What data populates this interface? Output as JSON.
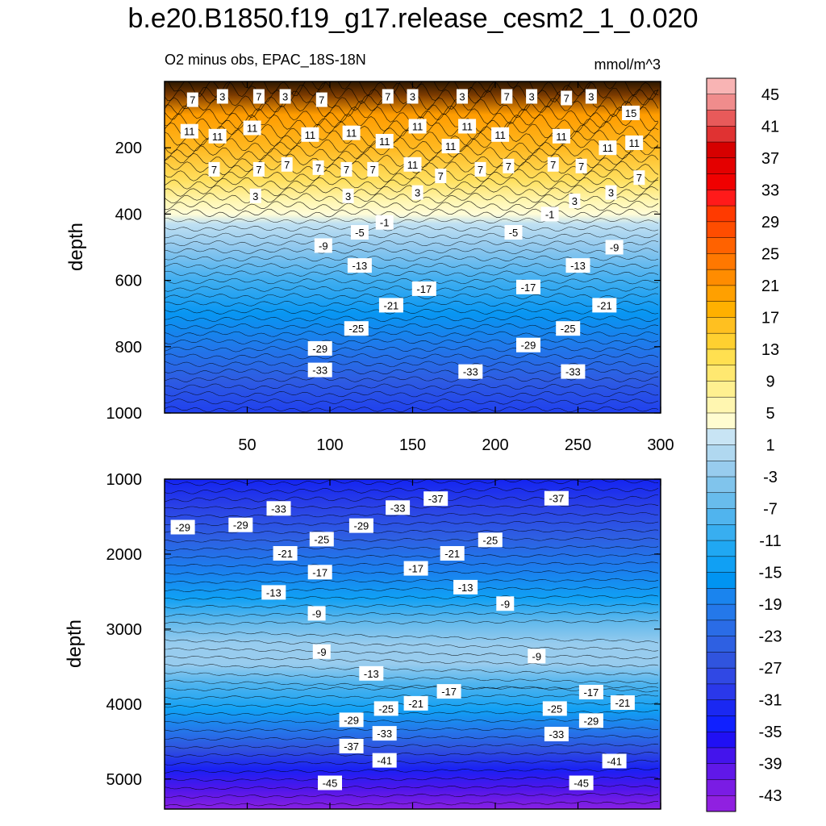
{
  "title": "b.e20.B1850.f19_g17.release_cesm2_1_0.020",
  "subtitle": "O2 minus obs, EPAC_18S-18N",
  "units": "mmol/m^3",
  "chart_data": [
    {
      "type": "heatmap",
      "panel": "upper",
      "ylabel": "depth",
      "xlim": [
        0,
        300
      ],
      "ylim": [
        1000,
        0
      ],
      "x_ticks": [
        "50",
        "100",
        "150",
        "200",
        "250",
        "300"
      ],
      "y_ticks": [
        "200",
        "400",
        "600",
        "800",
        "1000"
      ],
      "contour_labels": [
        {
          "text": "7",
          "x": 17,
          "y": 55
        },
        {
          "text": "3",
          "x": 35,
          "y": 45
        },
        {
          "text": "7",
          "x": 57,
          "y": 45
        },
        {
          "text": "3",
          "x": 73,
          "y": 45
        },
        {
          "text": "7",
          "x": 95,
          "y": 55
        },
        {
          "text": "7",
          "x": 135,
          "y": 45
        },
        {
          "text": "3",
          "x": 150,
          "y": 45
        },
        {
          "text": "3",
          "x": 180,
          "y": 45
        },
        {
          "text": "7",
          "x": 207,
          "y": 45
        },
        {
          "text": "3",
          "x": 222,
          "y": 45
        },
        {
          "text": "7",
          "x": 243,
          "y": 50
        },
        {
          "text": "3",
          "x": 258,
          "y": 45
        },
        {
          "text": "15",
          "x": 282,
          "y": 95
        },
        {
          "text": "11",
          "x": 15,
          "y": 150
        },
        {
          "text": "11",
          "x": 32,
          "y": 165
        },
        {
          "text": "11",
          "x": 53,
          "y": 140
        },
        {
          "text": "11",
          "x": 88,
          "y": 160
        },
        {
          "text": "11",
          "x": 113,
          "y": 155
        },
        {
          "text": "11",
          "x": 133,
          "y": 180
        },
        {
          "text": "11",
          "x": 153,
          "y": 135
        },
        {
          "text": "11",
          "x": 173,
          "y": 195
        },
        {
          "text": "11",
          "x": 183,
          "y": 135
        },
        {
          "text": "11",
          "x": 203,
          "y": 160
        },
        {
          "text": "11",
          "x": 240,
          "y": 165
        },
        {
          "text": "11",
          "x": 268,
          "y": 200
        },
        {
          "text": "11",
          "x": 284,
          "y": 185
        },
        {
          "text": "7",
          "x": 30,
          "y": 265
        },
        {
          "text": "7",
          "x": 57,
          "y": 265
        },
        {
          "text": "7",
          "x": 74,
          "y": 250
        },
        {
          "text": "7",
          "x": 93,
          "y": 260
        },
        {
          "text": "7",
          "x": 110,
          "y": 265
        },
        {
          "text": "7",
          "x": 126,
          "y": 265
        },
        {
          "text": "11",
          "x": 150,
          "y": 250
        },
        {
          "text": "7",
          "x": 167,
          "y": 285
        },
        {
          "text": "7",
          "x": 191,
          "y": 265
        },
        {
          "text": "7",
          "x": 208,
          "y": 255
        },
        {
          "text": "7",
          "x": 235,
          "y": 250
        },
        {
          "text": "7",
          "x": 252,
          "y": 255
        },
        {
          "text": "7",
          "x": 287,
          "y": 290
        },
        {
          "text": "3",
          "x": 55,
          "y": 345
        },
        {
          "text": "3",
          "x": 111,
          "y": 345
        },
        {
          "text": "3",
          "x": 153,
          "y": 335
        },
        {
          "text": "3",
          "x": 248,
          "y": 360
        },
        {
          "text": "3",
          "x": 270,
          "y": 335
        },
        {
          "text": "-1",
          "x": 133,
          "y": 425
        },
        {
          "text": "-1",
          "x": 233,
          "y": 400
        },
        {
          "text": "-5",
          "x": 118,
          "y": 455
        },
        {
          "text": "-5",
          "x": 211,
          "y": 455
        },
        {
          "text": "-9",
          "x": 96,
          "y": 495
        },
        {
          "text": "-9",
          "x": 272,
          "y": 500
        },
        {
          "text": "-13",
          "x": 118,
          "y": 555
        },
        {
          "text": "-13",
          "x": 250,
          "y": 555
        },
        {
          "text": "-17",
          "x": 157,
          "y": 625
        },
        {
          "text": "-17",
          "x": 220,
          "y": 620
        },
        {
          "text": "-21",
          "x": 137,
          "y": 675
        },
        {
          "text": "-21",
          "x": 266,
          "y": 675
        },
        {
          "text": "-25",
          "x": 116,
          "y": 745
        },
        {
          "text": "-25",
          "x": 244,
          "y": 745
        },
        {
          "text": "-29",
          "x": 94,
          "y": 805
        },
        {
          "text": "-29",
          "x": 220,
          "y": 795
        },
        {
          "text": "-33",
          "x": 94,
          "y": 870
        },
        {
          "text": "-33",
          "x": 185,
          "y": 875
        },
        {
          "text": "-33",
          "x": 247,
          "y": 875
        }
      ]
    },
    {
      "type": "heatmap",
      "panel": "lower",
      "ylabel": "depth",
      "xlim": [
        0,
        300
      ],
      "ylim": [
        5400,
        1000
      ],
      "x_ticks": [],
      "y_ticks": [
        "1000",
        "2000",
        "3000",
        "4000",
        "5000"
      ],
      "contour_labels": [
        {
          "text": "-33",
          "x": 69,
          "y": 1390
        },
        {
          "text": "-33",
          "x": 141,
          "y": 1380
        },
        {
          "text": "-37",
          "x": 164,
          "y": 1260
        },
        {
          "text": "-37",
          "x": 237,
          "y": 1255
        },
        {
          "text": "-29",
          "x": 11,
          "y": 1640
        },
        {
          "text": "-29",
          "x": 46,
          "y": 1610
        },
        {
          "text": "-29",
          "x": 119,
          "y": 1620
        },
        {
          "text": "-25",
          "x": 95,
          "y": 1800
        },
        {
          "text": "-25",
          "x": 197,
          "y": 1810
        },
        {
          "text": "-21",
          "x": 73,
          "y": 1990
        },
        {
          "text": "-21",
          "x": 174,
          "y": 1990
        },
        {
          "text": "-17",
          "x": 94,
          "y": 2240
        },
        {
          "text": "-17",
          "x": 152,
          "y": 2190
        },
        {
          "text": "-13",
          "x": 66,
          "y": 2510
        },
        {
          "text": "-13",
          "x": 182,
          "y": 2440
        },
        {
          "text": "-9",
          "x": 92,
          "y": 2790
        },
        {
          "text": "-9",
          "x": 206,
          "y": 2660
        },
        {
          "text": "-9",
          "x": 95,
          "y": 3300
        },
        {
          "text": "-9",
          "x": 225,
          "y": 3360
        },
        {
          "text": "-13",
          "x": 125,
          "y": 3590
        },
        {
          "text": "-17",
          "x": 172,
          "y": 3830
        },
        {
          "text": "-17",
          "x": 258,
          "y": 3840
        },
        {
          "text": "-21",
          "x": 152,
          "y": 3990
        },
        {
          "text": "-21",
          "x": 277,
          "y": 3980
        },
        {
          "text": "-25",
          "x": 134,
          "y": 4060
        },
        {
          "text": "-25",
          "x": 236,
          "y": 4060
        },
        {
          "text": "-29",
          "x": 113,
          "y": 4210
        },
        {
          "text": "-29",
          "x": 258,
          "y": 4220
        },
        {
          "text": "-33",
          "x": 133,
          "y": 4390
        },
        {
          "text": "-33",
          "x": 237,
          "y": 4400
        },
        {
          "text": "-37",
          "x": 113,
          "y": 4560
        },
        {
          "text": "-41",
          "x": 133,
          "y": 4750
        },
        {
          "text": "-41",
          "x": 272,
          "y": 4760
        },
        {
          "text": "-45",
          "x": 100,
          "y": 5050
        },
        {
          "text": "-45",
          "x": 252,
          "y": 5050
        }
      ]
    }
  ],
  "colorbar": {
    "labels": [
      "45",
      "41",
      "37",
      "33",
      "29",
      "25",
      "21",
      "17",
      "13",
      "9",
      "5",
      "1",
      "-3",
      "-7",
      "-11",
      "-15",
      "-19",
      "-23",
      "-27",
      "-31",
      "-35",
      "-39",
      "-43"
    ],
    "colors": [
      "#f8b4b4",
      "#f08c8c",
      "#e85a5a",
      "#e03232",
      "#d60000",
      "#e40000",
      "#f00000",
      "#ff1a1a",
      "#ff3a00",
      "#ff4d00",
      "#ff6200",
      "#ff7800",
      "#ff8c00",
      "#ffa000",
      "#ffb000",
      "#ffc020",
      "#ffd030",
      "#ffe050",
      "#ffe870",
      "#fff090",
      "#fff6b0",
      "#fffcd0",
      "#c8e4f4",
      "#b0d8f0",
      "#98ccee",
      "#80c4ec",
      "#68bcec",
      "#50b4ee",
      "#38aef0",
      "#20a8f2",
      "#10a0f4",
      "#0094f2",
      "#1a84ee",
      "#2478ea",
      "#2a6ce6",
      "#2e60e2",
      "#3054de",
      "#3048e4",
      "#2a38ea",
      "#1a28f2",
      "#1020ff",
      "#2010f4",
      "#4414ec",
      "#6018e8",
      "#7a1ce4",
      "#9020e0"
    ]
  }
}
